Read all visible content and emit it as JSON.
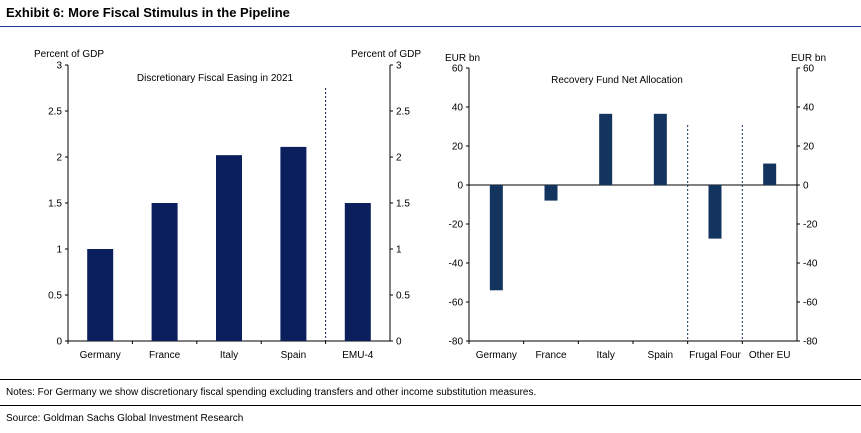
{
  "exhibit_title": "Exhibit 6: More Fiscal Stimulus in the Pipeline",
  "notes": "Notes: For Germany we show discretionary fiscal spending excluding transfers and other income substitution measures.",
  "source": "Source: Goldman Sachs Global Investment Research",
  "colors": {
    "bar_left": "#0b1f5c",
    "bar_right": "#12345f",
    "axis": "#000000",
    "title_rule": "#1f3a93"
  },
  "chart_data": [
    {
      "type": "bar",
      "title": "Discretionary Fiscal Easing in 2021",
      "ylabel_left": "Percent of GDP",
      "ylabel_right": "Percent of GDP",
      "categories": [
        "Germany",
        "France",
        "Italy",
        "Spain",
        "EMU-4"
      ],
      "values": [
        1.0,
        1.5,
        2.02,
        2.11,
        1.5
      ],
      "ylim": [
        0,
        3
      ],
      "yticks": [
        "0",
        "0.5",
        "1",
        "1.5",
        "2",
        "2.5",
        "3"
      ],
      "grid": false,
      "separator_before": "EMU-4"
    },
    {
      "type": "bar",
      "title": "Recovery Fund Net Allocation",
      "ylabel_left": "EUR bn",
      "ylabel_right": "EUR bn",
      "categories": [
        "Germany",
        "France",
        "Italy",
        "Spain",
        "Frugal Four",
        "Other EU"
      ],
      "values": [
        -54,
        -8,
        36.5,
        36.5,
        -27.5,
        11
      ],
      "ylim": [
        -80,
        60
      ],
      "yticks": [
        "-80",
        "-60",
        "-40",
        "-20",
        "0",
        "20",
        "40",
        "60"
      ],
      "grid": false,
      "separators_before": [
        "Frugal Four",
        "Other EU"
      ]
    }
  ]
}
